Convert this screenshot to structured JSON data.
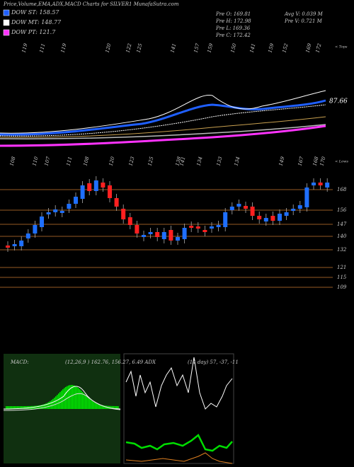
{
  "header": {
    "title": "Price,Volume,EMA,ADX,MACD Charts for SILVER1 MunafaSutra.com",
    "legend": [
      {
        "label": "DOW ST: 158.57",
        "color": "#1f5fff"
      },
      {
        "label": "DOW MT: 148.77",
        "color": "#ffffff"
      },
      {
        "label": "DOW PT: 121.7",
        "color": "#ff33ff"
      }
    ],
    "info": [
      "Pre  O: 169.81",
      "Pre  H: 172.98",
      "Pre  L: 169.36",
      "Pre  C: 172.42"
    ],
    "volume": [
      "Avg V: 0.039 M",
      "Pre  V: 0.721 M"
    ]
  },
  "tops": {
    "labels": [
      "119",
      "111",
      "119",
      "120",
      "122",
      "125",
      "141",
      "157",
      "159",
      "150",
      "141",
      "159",
      "152",
      "169",
      "172"
    ],
    "marker": "< Tops"
  },
  "ema_label": "87.66",
  "lows": {
    "labels": [
      "108",
      "110",
      "107",
      "111",
      "108",
      "120",
      "123",
      "125",
      "138",
      "141",
      "134",
      "133",
      "134",
      "149",
      "167",
      "168",
      "170"
    ],
    "marker": "< Lows"
  },
  "levels": [
    "168",
    "156",
    "147",
    "140",
    "132",
    "121",
    "115",
    "109"
  ],
  "macd": {
    "label": "MACD:",
    "text": "(12,26,9 ) 162.76, 156.27, 6.49 ADX"
  },
  "adx": {
    "text": "(14 day) 57, -37, -11"
  }
}
